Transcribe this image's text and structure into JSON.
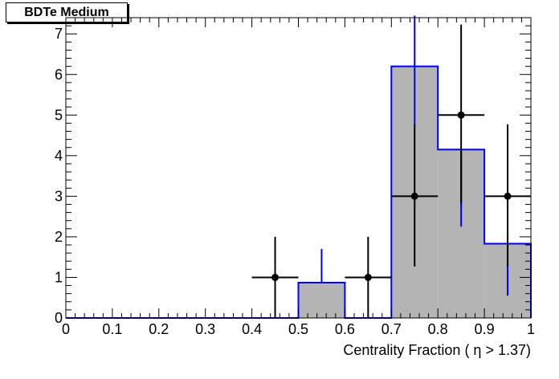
{
  "chart_data": {
    "type": "bar",
    "title": "BDTe Medium",
    "xlabel": "Centrality Fraction ( η > 1.37)",
    "ylabel": "",
    "xlim": [
      0,
      1
    ],
    "ylim": [
      0,
      7.4
    ],
    "x_ticks": [
      "0",
      "0.1",
      "0.2",
      "0.3",
      "0.4",
      "0.5",
      "0.6",
      "0.7",
      "0.8",
      "0.9",
      "1"
    ],
    "y_ticks": [
      "0",
      "1",
      "2",
      "3",
      "4",
      "5",
      "6",
      "7"
    ],
    "histogram": {
      "name": "",
      "bin_edges": [
        0,
        0.1,
        0.2,
        0.3,
        0.4,
        0.5,
        0.6,
        0.7,
        0.8,
        0.9,
        1.0
      ],
      "values": [
        0,
        0,
        0,
        0,
        0,
        0.87,
        0,
        6.2,
        4.15,
        1.83
      ],
      "errors": [
        null,
        null,
        null,
        null,
        null,
        {
          "low": 0,
          "high": 1.7
        },
        null,
        {
          "low": 4.75,
          "high": 7.45
        },
        {
          "low": 2.25,
          "high": 2.75
        },
        {
          "low": 0.55,
          "high": 1.3
        }
      ],
      "fill_color": "#b4b4b4",
      "line_color": "#0000ff"
    },
    "points": {
      "name": "",
      "x": [
        0.45,
        0.65,
        0.75,
        0.85,
        0.95
      ],
      "y": [
        1,
        1,
        3,
        5,
        3
      ],
      "x_err": [
        0.05,
        0.05,
        0.05,
        0.05,
        0.05
      ],
      "y_low": [
        0,
        0,
        1.27,
        2.84,
        1.27
      ],
      "y_high": [
        2,
        2,
        4.77,
        7.23,
        4.77
      ],
      "color": "#000000"
    },
    "grid": false
  }
}
